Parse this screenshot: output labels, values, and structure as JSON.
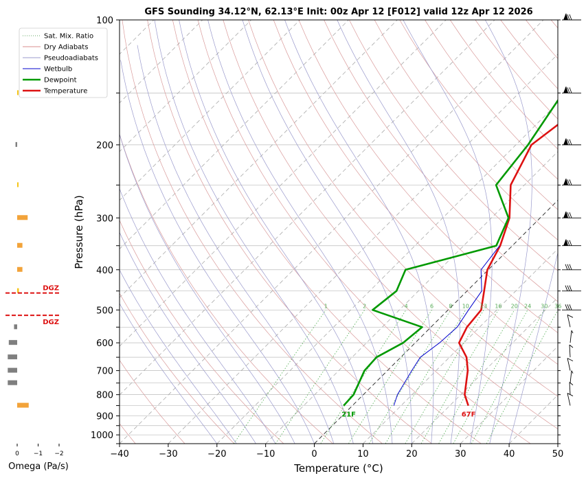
{
  "title": "GFS Sounding 34.12°N, 62.13°E Init: 00z Apr 12 [F012] valid 12z Apr 12 2026",
  "chart_data": [
    {
      "type": "skew-t",
      "title": "GFS Sounding 34.12°N, 62.13°E Init: 00z Apr 12 [F012] valid 12z Apr 12 2026",
      "xlabel": "Temperature (°C)",
      "ylabel": "Pressure (hPa)",
      "xlim": [
        -40,
        50
      ],
      "ylim": [
        1050,
        100
      ],
      "y_scale": "log",
      "skew": "45-degree isotherms",
      "x_ticks": [
        "−40",
        "−30",
        "−20",
        "−10",
        "0",
        "10",
        "20",
        "30",
        "40",
        "50"
      ],
      "x_tick_values": [
        -40,
        -30,
        -20,
        -10,
        0,
        10,
        20,
        30,
        40,
        50
      ],
      "y_ticks": [
        "100",
        "200",
        "300",
        "400",
        "500",
        "600",
        "700",
        "800",
        "900",
        "1000"
      ],
      "y_tick_values": [
        100,
        200,
        300,
        400,
        500,
        600,
        700,
        800,
        900,
        1000
      ],
      "grid": true,
      "legend_position": "upper-left-outside",
      "legend": [
        {
          "label": "Sat. Mix. Ratio",
          "color": "#2e8b2e",
          "style": "dotted"
        },
        {
          "label": "Dry Adiabats",
          "color": "#cc6666",
          "style": "solid-thin"
        },
        {
          "label": "Pseudoadiabats",
          "color": "#7777bb",
          "style": "solid-thin"
        },
        {
          "label": "Wetbulb",
          "color": "#0000cc",
          "style": "solid"
        },
        {
          "label": "Dewpoint",
          "color": "#009900",
          "style": "solid-thick"
        },
        {
          "label": "Temperature",
          "color": "#dd1111",
          "style": "solid-thick"
        }
      ],
      "series": [
        {
          "name": "Temperature",
          "color": "#dd1111",
          "points": [
            [
              850,
              23.8
            ],
            [
              800,
              20.8
            ],
            [
              700,
              16.5
            ],
            [
              650,
              13.5
            ],
            [
              600,
              9.0
            ],
            [
              550,
              7.4
            ],
            [
              500,
              6.8
            ],
            [
              450,
              3.5
            ],
            [
              400,
              -0.2
            ],
            [
              350,
              -2.5
            ],
            [
              300,
              -6.3
            ],
            [
              250,
              -12.8
            ],
            [
              200,
              -16.8
            ],
            [
              150,
              -13.5
            ],
            [
              100,
              -3.0
            ]
          ]
        },
        {
          "name": "Dewpoint",
          "color": "#009900",
          "points": [
            [
              850,
              -1.8
            ],
            [
              800,
              -2.0
            ],
            [
              700,
              -4.7
            ],
            [
              650,
              -5.0
            ],
            [
              600,
              -2.5
            ],
            [
              550,
              -1.8
            ],
            [
              500,
              -15.5
            ],
            [
              450,
              -14.5
            ],
            [
              400,
              -17.0
            ],
            [
              350,
              -3.3
            ],
            [
              300,
              -6.5
            ],
            [
              250,
              -15.8
            ],
            [
              200,
              -17.5
            ],
            [
              150,
              -21.0
            ],
            [
              100,
              -21.0
            ]
          ]
        },
        {
          "name": "Wetbulb",
          "color": "#0000cc",
          "points": [
            [
              850,
              8.5
            ],
            [
              800,
              7.0
            ],
            [
              700,
              5.0
            ],
            [
              650,
              4.0
            ],
            [
              600,
              5.0
            ],
            [
              550,
              5.4
            ],
            [
              500,
              4.2
            ],
            [
              450,
              3.0
            ],
            [
              400,
              -1.5
            ],
            [
              350,
              -2.6
            ]
          ]
        }
      ],
      "surface_labels": {
        "dewpoint": "21F",
        "temperature": "67F"
      },
      "dgz_label": "DGZ",
      "dgz_pressure": [
        455,
        515
      ],
      "mixing_ratio_labels": [
        "1",
        "2",
        "4",
        "6",
        "8",
        "10",
        "13",
        "16",
        "20",
        "24",
        "30",
        "36"
      ],
      "mixing_ratio_values": [
        1,
        2,
        4,
        6,
        8,
        10,
        13,
        16,
        20,
        24,
        30,
        36
      ],
      "wind_barb_pressures": [
        850,
        800,
        750,
        700,
        650,
        600,
        550,
        500,
        450,
        400,
        350,
        300,
        250,
        200,
        150,
        100
      ]
    },
    {
      "type": "bar",
      "orientation": "horizontal",
      "xlabel": "Omega (Pa/s)",
      "x_ticks": [
        "0",
        "−1",
        "−2"
      ],
      "x_tick_values": [
        0,
        -1,
        -2
      ],
      "xlim": [
        0.3,
        -2.0
      ],
      "colors": {
        "rising": "#f2a33a",
        "weak_rising": "#f5c518",
        "sinking": "#7f7f7f"
      },
      "values": [
        {
          "p": 850,
          "omega": -0.55
        },
        {
          "p": 750,
          "omega": 0.45
        },
        {
          "p": 700,
          "omega": 0.45
        },
        {
          "p": 650,
          "omega": 0.45
        },
        {
          "p": 600,
          "omega": 0.4
        },
        {
          "p": 550,
          "omega": 0.15
        },
        {
          "p": 450,
          "omega": -0.08
        },
        {
          "p": 400,
          "omega": -0.25
        },
        {
          "p": 350,
          "omega": -0.25
        },
        {
          "p": 300,
          "omega": -0.5
        },
        {
          "p": 250,
          "omega": -0.03
        },
        {
          "p": 200,
          "omega": 0.08
        },
        {
          "p": 150,
          "omega": -0.03
        }
      ]
    }
  ]
}
